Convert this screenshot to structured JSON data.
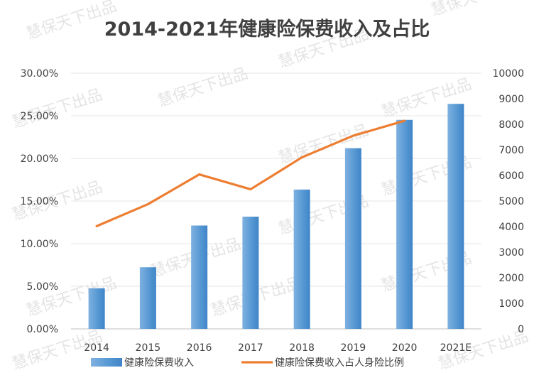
{
  "chart_data": {
    "type": "bar",
    "title": "2014-2021年健康险保费收入及占比",
    "categories": [
      "2014",
      "2015",
      "2016",
      "2017",
      "2018",
      "2019",
      "2020",
      "2021E"
    ],
    "series": [
      {
        "name": "健康险保费收入",
        "type": "bar",
        "axis": "right",
        "color": "#5b9bd5",
        "values": [
          1587,
          2410,
          4042,
          4389,
          5448,
          7066,
          8173,
          8800
        ]
      },
      {
        "name": "健康险保费收入占人身险比例",
        "type": "line",
        "axis": "left",
        "color": "#ed7d31",
        "values": [
          0.1205,
          0.1463,
          0.1812,
          0.1638,
          0.2012,
          0.2266,
          0.2441,
          null
        ]
      }
    ],
    "y_left": {
      "ylim": [
        0,
        0.3
      ],
      "ticks": [
        "0.00%",
        "5.00%",
        "10.00%",
        "15.00%",
        "20.00%",
        "25.00%",
        "30.00%"
      ]
    },
    "y_right": {
      "ylim": [
        0,
        10000
      ],
      "ticks": [
        "0",
        "1000",
        "2000",
        "3000",
        "4000",
        "5000",
        "6000",
        "7000",
        "8000",
        "9000",
        "10000"
      ]
    },
    "grid": true,
    "legend": "bottom",
    "watermark": "慧保天下出品"
  }
}
